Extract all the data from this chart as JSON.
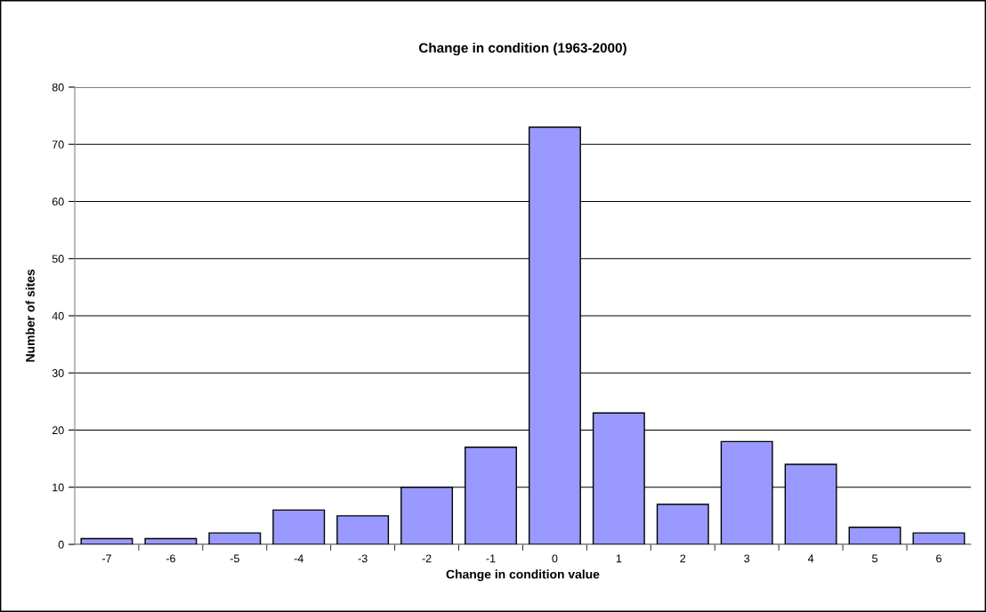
{
  "chart_data": {
    "type": "bar",
    "title": "Change in condition (1963-2000)",
    "xlabel": "Change in condition value",
    "ylabel": "Number of sites",
    "categories": [
      "-7",
      "-6",
      "-5",
      "-4",
      "-3",
      "-2",
      "-1",
      "0",
      "1",
      "2",
      "3",
      "4",
      "5",
      "6"
    ],
    "values": [
      1,
      1,
      2,
      6,
      5,
      10,
      17,
      73,
      23,
      7,
      18,
      14,
      3,
      2
    ],
    "color": "#9999ff",
    "ylim": [
      0,
      80
    ],
    "yticks": [
      0,
      10,
      20,
      30,
      40,
      50,
      60,
      70,
      80
    ],
    "grid": "y",
    "legend": false
  }
}
